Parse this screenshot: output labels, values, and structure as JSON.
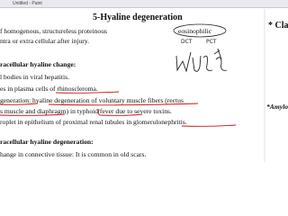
{
  "title_bar": "Untitled - Paint",
  "heading": "5-Hyaline degeneration",
  "lines": [
    "f homogenous, structureless proteinous",
    "ntra or extra cellular after injury.",
    "racellular hyaline change:",
    "l bodies in viral hepatitis.",
    "es in plasma cells of rhinoscleroma.",
    "generation: hyaline degeneration of voluntary muscle fibers (rectus",
    "s muscle and diaphragm) in typhoid fever due to severe toxins.",
    "roplet in epithelium of proximal renal tubules in glomerulonephritis.",
    "racellular hyaline degeneration:",
    "hange in connective tissue: It is common in old scars."
  ],
  "circled_word": "eosinophilic",
  "right_column": [
    "* Clas",
    "*Amylo"
  ],
  "annotations": [
    "DCT",
    "PCT"
  ]
}
